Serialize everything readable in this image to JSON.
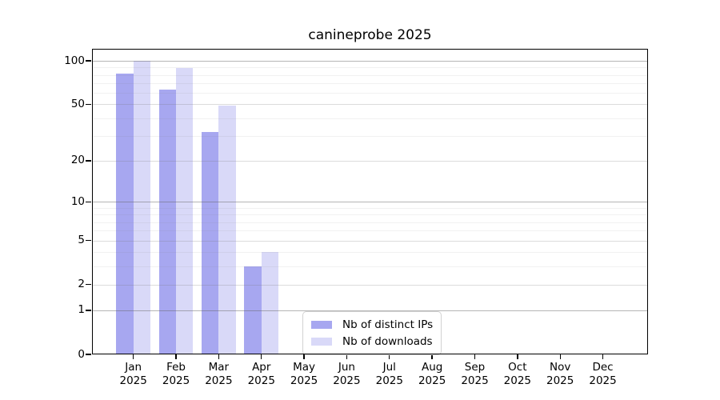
{
  "chart_data": {
    "type": "bar",
    "title": "canineprobe 2025",
    "x_axis": {
      "categories": [
        "Jan",
        "Feb",
        "Mar",
        "Apr",
        "May",
        "Jun",
        "Jul",
        "Aug",
        "Sep",
        "Oct",
        "Nov",
        "Dec"
      ],
      "year_label": "2025"
    },
    "y_axis": {
      "scale": "log10(1+value)",
      "ticks": [
        0,
        1,
        2,
        5,
        10,
        20,
        50,
        100
      ],
      "limits": [
        0,
        121
      ],
      "gridlines": {
        "decade": [
          1,
          10,
          100
        ],
        "mid": [
          2,
          5,
          20,
          50
        ],
        "minor": [
          3,
          4,
          6,
          7,
          8,
          9,
          30,
          40,
          60,
          70,
          80,
          90
        ]
      }
    },
    "series": [
      {
        "name": "Nb of distinct IPs",
        "color": "#a7a7f0",
        "values": [
          82,
          63,
          32,
          3,
          0,
          0,
          0,
          0,
          0,
          0,
          0,
          0
        ]
      },
      {
        "name": "Nb of downloads",
        "color": "#d9d9f8",
        "values": [
          100,
          89,
          49,
          4,
          0,
          0,
          0,
          0,
          0,
          0,
          0,
          0
        ]
      }
    ],
    "legend": {
      "position": "lower center",
      "labels": [
        "Nb of distinct IPs",
        "Nb of downloads"
      ]
    },
    "grid": true,
    "xlabel": "",
    "ylabel": ""
  },
  "colors": {
    "background": "#ffffff",
    "spine": "#000000",
    "text": "#000000",
    "legend_border": "#d2d2d2"
  }
}
